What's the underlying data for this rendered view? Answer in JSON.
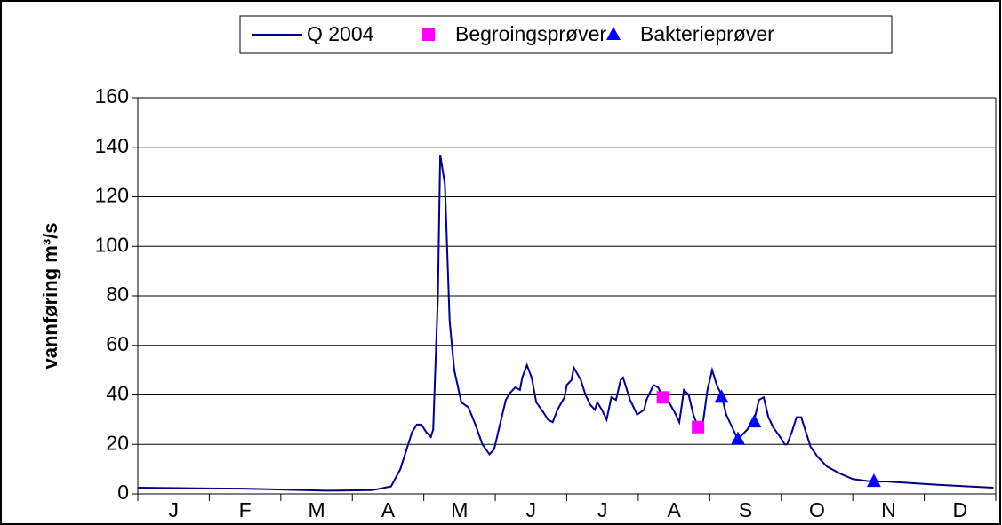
{
  "chart_data": {
    "type": "line",
    "y_label": "vannføring m³/s",
    "categories": [
      "J",
      "F",
      "M",
      "A",
      "M",
      "J",
      "J",
      "A",
      "S",
      "O",
      "N",
      "D"
    ],
    "xlim": [
      0,
      366
    ],
    "ylim": [
      0,
      160
    ],
    "yticks": [
      0,
      20,
      40,
      60,
      80,
      100,
      120,
      140,
      160
    ],
    "grid": true,
    "series": [
      {
        "name": "Q 2004",
        "color": "#000080",
        "marker": "line",
        "x": [
          0,
          30,
          45,
          60,
          80,
          100,
          108,
          112,
          117,
          119,
          121,
          123,
          125,
          126,
          128,
          129,
          131,
          133,
          135,
          138,
          141,
          144,
          147,
          150,
          152,
          154,
          157,
          159,
          161,
          163,
          164,
          166,
          168,
          170,
          173,
          175,
          177,
          179,
          182,
          183,
          185,
          186,
          189,
          191,
          193,
          195,
          196,
          198,
          200,
          202,
          204,
          206,
          207,
          210,
          212,
          213,
          216,
          217,
          220,
          222,
          224,
          226,
          229,
          231,
          233,
          235,
          237,
          239,
          241,
          243,
          245,
          247,
          249,
          251,
          254,
          256,
          258,
          260,
          263,
          265,
          267,
          269,
          271,
          274,
          276,
          277,
          279,
          281,
          283,
          285,
          287,
          290,
          294,
          300,
          305,
          313,
          320,
          328,
          339,
          351,
          365
        ],
        "values": [
          2.5,
          2.2,
          2.1,
          1.8,
          1.3,
          1.5,
          3,
          10,
          25,
          28,
          28,
          25,
          23,
          26,
          80,
          137,
          125,
          70,
          50,
          37,
          35,
          28,
          20,
          16,
          18,
          26,
          38,
          41,
          43,
          42,
          47,
          52,
          47,
          37,
          33,
          30,
          29,
          34,
          39,
          44,
          46,
          51,
          46,
          40,
          36,
          34,
          37,
          34,
          30,
          39,
          38,
          46,
          47,
          38,
          34,
          32,
          34,
          38,
          44,
          43,
          39,
          38,
          33,
          29,
          42,
          40,
          32,
          27,
          28,
          42,
          50,
          44,
          40,
          32,
          26,
          22,
          24,
          26,
          30,
          38,
          39,
          31,
          27,
          23,
          20,
          20,
          25,
          31,
          31,
          25,
          19,
          15,
          11,
          8,
          6,
          5,
          5,
          4.5,
          3.8,
          3.2,
          2.5
        ]
      },
      {
        "name": "Begroingsprøver",
        "color": "#ff00ff",
        "marker": "square",
        "x": [
          224,
          239
        ],
        "values": [
          39,
          27
        ]
      },
      {
        "name": "Bakterieprøver",
        "color": "#0000ff",
        "marker": "triangle",
        "x": [
          249,
          256,
          263,
          314
        ],
        "values": [
          39,
          22,
          29,
          5
        ]
      }
    ]
  }
}
